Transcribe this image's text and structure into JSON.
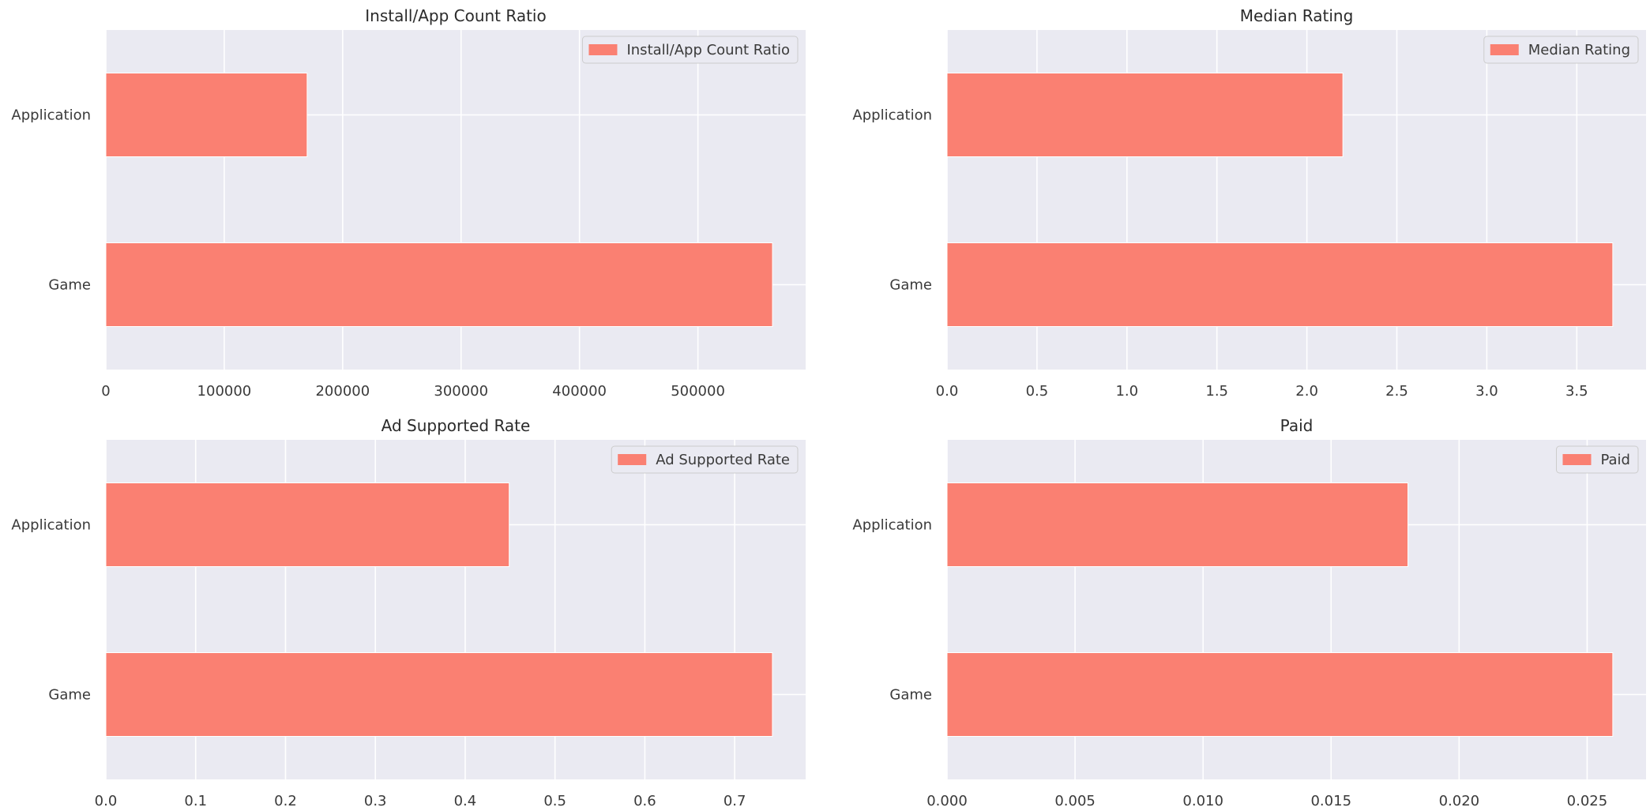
{
  "chart_data": [
    {
      "type": "bar",
      "orientation": "horizontal",
      "title": "Install/App Count Ratio",
      "categories": [
        "Game",
        "Application"
      ],
      "series": [
        {
          "name": "Install/App Count Ratio",
          "values": [
            563000,
            170000
          ]
        }
      ],
      "xlim": [
        0,
        591000
      ],
      "xticks": [
        0,
        100000,
        200000,
        300000,
        400000,
        500000
      ],
      "xtick_labels": [
        "0",
        "100000",
        "200000",
        "300000",
        "400000",
        "500000"
      ],
      "legend_position": "upper right",
      "grid": true
    },
    {
      "type": "bar",
      "orientation": "horizontal",
      "title": "Median Rating",
      "categories": [
        "Game",
        "Application"
      ],
      "series": [
        {
          "name": "Median Rating",
          "values": [
            3.7,
            2.2
          ]
        }
      ],
      "xlim": [
        0,
        3.885
      ],
      "xticks": [
        0.0,
        0.5,
        1.0,
        1.5,
        2.0,
        2.5,
        3.0,
        3.5
      ],
      "xtick_labels": [
        "0.0",
        "0.5",
        "1.0",
        "1.5",
        "2.0",
        "2.5",
        "3.0",
        "3.5"
      ],
      "legend_position": "upper right",
      "grid": true
    },
    {
      "type": "bar",
      "orientation": "horizontal",
      "title": "Ad Supported Rate",
      "categories": [
        "Game",
        "Application"
      ],
      "series": [
        {
          "name": "Ad Supported Rate",
          "values": [
            0.742,
            0.449
          ]
        }
      ],
      "xlim": [
        0,
        0.779
      ],
      "xticks": [
        0.0,
        0.1,
        0.2,
        0.3,
        0.4,
        0.5,
        0.6,
        0.7
      ],
      "xtick_labels": [
        "0.0",
        "0.1",
        "0.2",
        "0.3",
        "0.4",
        "0.5",
        "0.6",
        "0.7"
      ],
      "legend_position": "upper right",
      "grid": true
    },
    {
      "type": "bar",
      "orientation": "horizontal",
      "title": "Paid",
      "categories": [
        "Game",
        "Application"
      ],
      "series": [
        {
          "name": "Paid",
          "values": [
            0.026,
            0.018
          ]
        }
      ],
      "xlim": [
        0,
        0.0273
      ],
      "xticks": [
        0.0,
        0.005,
        0.01,
        0.015,
        0.02,
        0.025
      ],
      "xtick_labels": [
        "0.000",
        "0.005",
        "0.010",
        "0.015",
        "0.020",
        "0.025"
      ],
      "legend_position": "upper right",
      "grid": true
    }
  ],
  "colors": {
    "bar": "#fa8072",
    "plot_background": "#eaeaf2",
    "grid": "#ffffff",
    "text": "#3a3a3a"
  }
}
